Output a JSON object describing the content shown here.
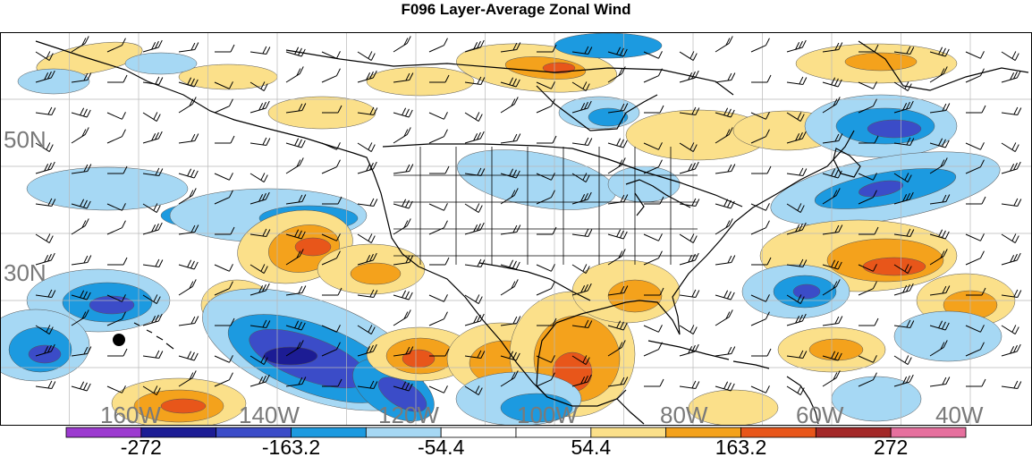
{
  "title": "F096 Layer-Average Zonal Wind",
  "map": {
    "lat_labels": [
      "50N",
      "30N"
    ],
    "lon_labels": [
      "160W",
      "140W",
      "120W",
      "100W",
      "80W",
      "60W",
      "40W"
    ],
    "marker": "filled-circle"
  },
  "colorbar": {
    "colors": [
      "#9c3ad0",
      "#1c1c94",
      "#3b4cc8",
      "#1c9ae0",
      "#a6d8f4",
      "#ffffff",
      "#ffffff",
      "#fbe08a",
      "#f4a21c",
      "#e8561a",
      "#a32828",
      "#e6709e"
    ],
    "tick_labels": [
      "-272",
      "-163.2",
      "-54.4",
      "54.4",
      "163.2",
      "272"
    ]
  },
  "fill_colors": {
    "neg1": "#a6d8f4",
    "neg2": "#1c9ae0",
    "neg3": "#3b4cc8",
    "neg4": "#1c1c94",
    "pos1": "#fbe08a",
    "pos2": "#f4a21c",
    "pos3": "#e8561a",
    "pos4": "#a32828"
  }
}
